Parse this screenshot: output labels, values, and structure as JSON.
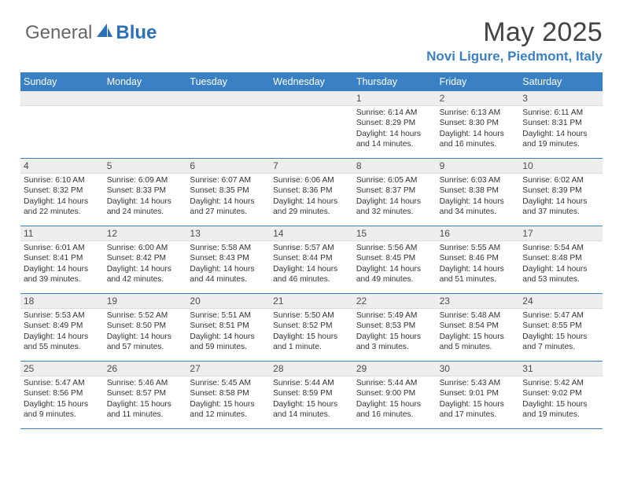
{
  "logo": {
    "text1": "General",
    "text2": "Blue",
    "sail_color": "#2b70b8"
  },
  "title": {
    "month": "May 2025",
    "location": "Novi Ligure, Piedmont, Italy"
  },
  "day_names": [
    "Sunday",
    "Monday",
    "Tuesday",
    "Wednesday",
    "Thursday",
    "Friday",
    "Saturday"
  ],
  "colors": {
    "header_bg": "#3a80c4",
    "header_text": "#ffffff",
    "datebar_bg": "#eeeeee",
    "sep_color": "#3a80c4",
    "body_text": "#333333"
  },
  "weeks": [
    [
      {
        "date": "",
        "lines": []
      },
      {
        "date": "",
        "lines": []
      },
      {
        "date": "",
        "lines": []
      },
      {
        "date": "",
        "lines": []
      },
      {
        "date": "1",
        "lines": [
          "Sunrise: 6:14 AM",
          "Sunset: 8:29 PM",
          "Daylight: 14 hours and 14 minutes."
        ]
      },
      {
        "date": "2",
        "lines": [
          "Sunrise: 6:13 AM",
          "Sunset: 8:30 PM",
          "Daylight: 14 hours and 16 minutes."
        ]
      },
      {
        "date": "3",
        "lines": [
          "Sunrise: 6:11 AM",
          "Sunset: 8:31 PM",
          "Daylight: 14 hours and 19 minutes."
        ]
      }
    ],
    [
      {
        "date": "4",
        "lines": [
          "Sunrise: 6:10 AM",
          "Sunset: 8:32 PM",
          "Daylight: 14 hours and 22 minutes."
        ]
      },
      {
        "date": "5",
        "lines": [
          "Sunrise: 6:09 AM",
          "Sunset: 8:33 PM",
          "Daylight: 14 hours and 24 minutes."
        ]
      },
      {
        "date": "6",
        "lines": [
          "Sunrise: 6:07 AM",
          "Sunset: 8:35 PM",
          "Daylight: 14 hours and 27 minutes."
        ]
      },
      {
        "date": "7",
        "lines": [
          "Sunrise: 6:06 AM",
          "Sunset: 8:36 PM",
          "Daylight: 14 hours and 29 minutes."
        ]
      },
      {
        "date": "8",
        "lines": [
          "Sunrise: 6:05 AM",
          "Sunset: 8:37 PM",
          "Daylight: 14 hours and 32 minutes."
        ]
      },
      {
        "date": "9",
        "lines": [
          "Sunrise: 6:03 AM",
          "Sunset: 8:38 PM",
          "Daylight: 14 hours and 34 minutes."
        ]
      },
      {
        "date": "10",
        "lines": [
          "Sunrise: 6:02 AM",
          "Sunset: 8:39 PM",
          "Daylight: 14 hours and 37 minutes."
        ]
      }
    ],
    [
      {
        "date": "11",
        "lines": [
          "Sunrise: 6:01 AM",
          "Sunset: 8:41 PM",
          "Daylight: 14 hours and 39 minutes."
        ]
      },
      {
        "date": "12",
        "lines": [
          "Sunrise: 6:00 AM",
          "Sunset: 8:42 PM",
          "Daylight: 14 hours and 42 minutes."
        ]
      },
      {
        "date": "13",
        "lines": [
          "Sunrise: 5:58 AM",
          "Sunset: 8:43 PM",
          "Daylight: 14 hours and 44 minutes."
        ]
      },
      {
        "date": "14",
        "lines": [
          "Sunrise: 5:57 AM",
          "Sunset: 8:44 PM",
          "Daylight: 14 hours and 46 minutes."
        ]
      },
      {
        "date": "15",
        "lines": [
          "Sunrise: 5:56 AM",
          "Sunset: 8:45 PM",
          "Daylight: 14 hours and 49 minutes."
        ]
      },
      {
        "date": "16",
        "lines": [
          "Sunrise: 5:55 AM",
          "Sunset: 8:46 PM",
          "Daylight: 14 hours and 51 minutes."
        ]
      },
      {
        "date": "17",
        "lines": [
          "Sunrise: 5:54 AM",
          "Sunset: 8:48 PM",
          "Daylight: 14 hours and 53 minutes."
        ]
      }
    ],
    [
      {
        "date": "18",
        "lines": [
          "Sunrise: 5:53 AM",
          "Sunset: 8:49 PM",
          "Daylight: 14 hours and 55 minutes."
        ]
      },
      {
        "date": "19",
        "lines": [
          "Sunrise: 5:52 AM",
          "Sunset: 8:50 PM",
          "Daylight: 14 hours and 57 minutes."
        ]
      },
      {
        "date": "20",
        "lines": [
          "Sunrise: 5:51 AM",
          "Sunset: 8:51 PM",
          "Daylight: 14 hours and 59 minutes."
        ]
      },
      {
        "date": "21",
        "lines": [
          "Sunrise: 5:50 AM",
          "Sunset: 8:52 PM",
          "Daylight: 15 hours and 1 minute."
        ]
      },
      {
        "date": "22",
        "lines": [
          "Sunrise: 5:49 AM",
          "Sunset: 8:53 PM",
          "Daylight: 15 hours and 3 minutes."
        ]
      },
      {
        "date": "23",
        "lines": [
          "Sunrise: 5:48 AM",
          "Sunset: 8:54 PM",
          "Daylight: 15 hours and 5 minutes."
        ]
      },
      {
        "date": "24",
        "lines": [
          "Sunrise: 5:47 AM",
          "Sunset: 8:55 PM",
          "Daylight: 15 hours and 7 minutes."
        ]
      }
    ],
    [
      {
        "date": "25",
        "lines": [
          "Sunrise: 5:47 AM",
          "Sunset: 8:56 PM",
          "Daylight: 15 hours and 9 minutes."
        ]
      },
      {
        "date": "26",
        "lines": [
          "Sunrise: 5:46 AM",
          "Sunset: 8:57 PM",
          "Daylight: 15 hours and 11 minutes."
        ]
      },
      {
        "date": "27",
        "lines": [
          "Sunrise: 5:45 AM",
          "Sunset: 8:58 PM",
          "Daylight: 15 hours and 12 minutes."
        ]
      },
      {
        "date": "28",
        "lines": [
          "Sunrise: 5:44 AM",
          "Sunset: 8:59 PM",
          "Daylight: 15 hours and 14 minutes."
        ]
      },
      {
        "date": "29",
        "lines": [
          "Sunrise: 5:44 AM",
          "Sunset: 9:00 PM",
          "Daylight: 15 hours and 16 minutes."
        ]
      },
      {
        "date": "30",
        "lines": [
          "Sunrise: 5:43 AM",
          "Sunset: 9:01 PM",
          "Daylight: 15 hours and 17 minutes."
        ]
      },
      {
        "date": "31",
        "lines": [
          "Sunrise: 5:42 AM",
          "Sunset: 9:02 PM",
          "Daylight: 15 hours and 19 minutes."
        ]
      }
    ]
  ]
}
